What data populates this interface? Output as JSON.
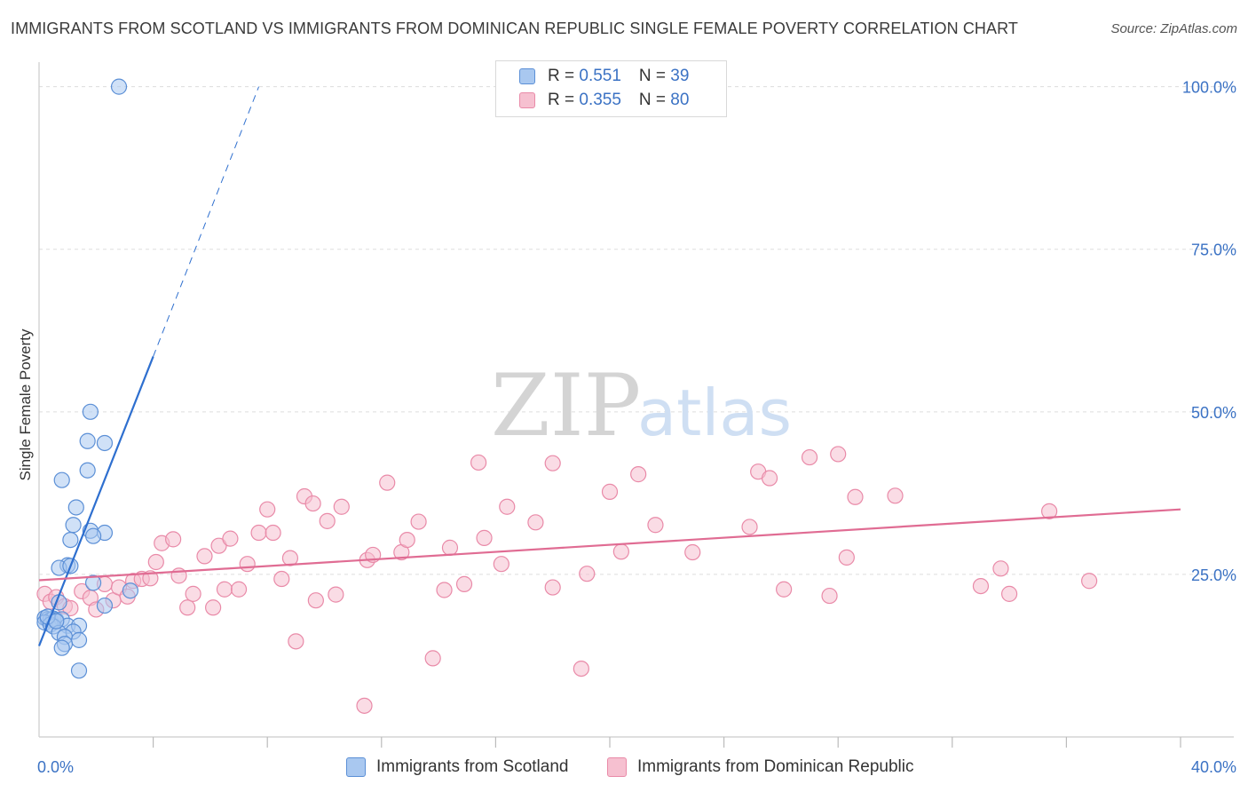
{
  "title": "IMMIGRANTS FROM SCOTLAND VS IMMIGRANTS FROM DOMINICAN REPUBLIC SINGLE FEMALE POVERTY CORRELATION CHART",
  "source": "Source: ZipAtlas.com",
  "watermark": {
    "zip": "ZIP",
    "atlas": "atlas"
  },
  "colors": {
    "scotland_fill": "#a9c8f0",
    "scotland_stroke": "#5b8fd6",
    "scotland_line": "#2e6fcf",
    "dominican_fill": "#f6c0d0",
    "dominican_stroke": "#e98aa8",
    "dominican_line": "#e06c93",
    "tick": "#3b72c4",
    "grid": "#dddddd"
  },
  "legend": {
    "scotland": {
      "r_label": "R = ",
      "r_value": "0.551",
      "n_label": "N = ",
      "n_value": "39"
    },
    "dominican": {
      "r_label": "R = ",
      "r_value": "0.355",
      "n_label": "N = ",
      "n_value": "80"
    }
  },
  "bottom_legend": {
    "scotland": "Immigrants from Scotland",
    "dominican": "Immigrants from Dominican Republic"
  },
  "chart_data": {
    "type": "scatter",
    "title": "IMMIGRANTS FROM SCOTLAND VS IMMIGRANTS FROM DOMINICAN REPUBLIC SINGLE FEMALE POVERTY CORRELATION CHART",
    "xlabel": "",
    "ylabel": "Single Female Poverty",
    "xlim": [
      0,
      40
    ],
    "ylim": [
      0,
      105
    ],
    "x_tick_labels": [
      {
        "value": 0,
        "label": "0.0%"
      },
      {
        "value": 40,
        "label": "40.0%"
      }
    ],
    "y_ticks": [
      {
        "value": 25,
        "label": "25.0%"
      },
      {
        "value": 50,
        "label": "50.0%"
      },
      {
        "value": 75,
        "label": "75.0%"
      },
      {
        "value": 100,
        "label": "100.0%"
      }
    ],
    "x_minor_ticks": [
      4,
      8,
      12,
      16,
      20,
      24,
      28,
      32,
      36,
      40
    ],
    "series": [
      {
        "name": "Immigrants from Scotland",
        "r": 0.551,
        "n": 39,
        "trend": {
          "x0": 0.0,
          "y0": 14.0,
          "x1": 4.0,
          "y1": 58.5,
          "dash_x1": 7.7,
          "dash_y1": 100.0
        },
        "points": [
          [
            2.8,
            100.0
          ],
          [
            1.8,
            50.0
          ],
          [
            1.7,
            45.5
          ],
          [
            2.3,
            45.2
          ],
          [
            1.7,
            41.0
          ],
          [
            0.8,
            39.5
          ],
          [
            1.3,
            35.3
          ],
          [
            1.2,
            32.6
          ],
          [
            1.8,
            31.7
          ],
          [
            2.3,
            31.4
          ],
          [
            1.9,
            30.9
          ],
          [
            1.1,
            30.3
          ],
          [
            1.0,
            26.4
          ],
          [
            0.7,
            26.0
          ],
          [
            1.1,
            26.3
          ],
          [
            1.9,
            23.7
          ],
          [
            3.2,
            22.5
          ],
          [
            0.7,
            20.7
          ],
          [
            2.3,
            20.2
          ],
          [
            0.2,
            18.3
          ],
          [
            0.3,
            18.1
          ],
          [
            0.4,
            18.0
          ],
          [
            0.5,
            18.2
          ],
          [
            0.6,
            18.0
          ],
          [
            0.8,
            18.1
          ],
          [
            0.2,
            17.6
          ],
          [
            0.4,
            17.3
          ],
          [
            0.5,
            17.0
          ],
          [
            1.0,
            17.1
          ],
          [
            1.4,
            17.1
          ],
          [
            0.7,
            16.0
          ],
          [
            1.2,
            16.2
          ],
          [
            0.9,
            15.4
          ],
          [
            1.4,
            14.9
          ],
          [
            0.9,
            14.3
          ],
          [
            0.8,
            13.7
          ],
          [
            1.4,
            10.2
          ],
          [
            0.3,
            18.5
          ],
          [
            0.6,
            17.8
          ]
        ]
      },
      {
        "name": "Immigrants from Dominican Republic",
        "r": 0.355,
        "n": 80,
        "trend": {
          "x0": 0.0,
          "y0": 24.1,
          "x1": 40.0,
          "y1": 35.0
        },
        "points": [
          [
            0.2,
            22.0
          ],
          [
            0.4,
            20.8
          ],
          [
            0.6,
            21.5
          ],
          [
            0.9,
            20.1
          ],
          [
            1.1,
            19.8
          ],
          [
            1.5,
            22.4
          ],
          [
            1.8,
            21.4
          ],
          [
            2.0,
            19.6
          ],
          [
            2.3,
            23.5
          ],
          [
            2.6,
            21.0
          ],
          [
            2.8,
            23.0
          ],
          [
            3.1,
            21.6
          ],
          [
            3.3,
            24.0
          ],
          [
            3.6,
            24.3
          ],
          [
            3.9,
            24.4
          ],
          [
            4.1,
            26.9
          ],
          [
            4.3,
            29.8
          ],
          [
            4.7,
            30.4
          ],
          [
            4.9,
            24.8
          ],
          [
            5.2,
            19.9
          ],
          [
            5.4,
            22.0
          ],
          [
            5.8,
            27.8
          ],
          [
            6.1,
            19.9
          ],
          [
            6.3,
            29.4
          ],
          [
            6.5,
            22.7
          ],
          [
            6.7,
            30.5
          ],
          [
            7.0,
            22.7
          ],
          [
            7.3,
            26.6
          ],
          [
            7.7,
            31.4
          ],
          [
            8.0,
            35.0
          ],
          [
            8.2,
            31.4
          ],
          [
            8.5,
            24.3
          ],
          [
            8.8,
            27.5
          ],
          [
            9.0,
            14.7
          ],
          [
            9.3,
            37.0
          ],
          [
            9.6,
            35.9
          ],
          [
            9.7,
            21.0
          ],
          [
            10.1,
            33.2
          ],
          [
            10.4,
            21.9
          ],
          [
            10.6,
            35.4
          ],
          [
            11.5,
            27.2
          ],
          [
            11.7,
            28.0
          ],
          [
            12.2,
            39.1
          ],
          [
            11.4,
            4.8
          ],
          [
            12.7,
            28.4
          ],
          [
            12.9,
            30.3
          ],
          [
            13.3,
            33.1
          ],
          [
            13.8,
            12.1
          ],
          [
            14.2,
            22.6
          ],
          [
            14.4,
            29.1
          ],
          [
            14.9,
            23.5
          ],
          [
            15.4,
            42.2
          ],
          [
            15.6,
            30.6
          ],
          [
            16.2,
            26.6
          ],
          [
            16.4,
            35.4
          ],
          [
            17.4,
            33.0
          ],
          [
            18.0,
            42.1
          ],
          [
            18.0,
            23.0
          ],
          [
            19.0,
            10.5
          ],
          [
            19.2,
            25.1
          ],
          [
            20.0,
            37.7
          ],
          [
            20.4,
            28.5
          ],
          [
            21.0,
            40.4
          ],
          [
            21.6,
            32.6
          ],
          [
            22.9,
            28.4
          ],
          [
            24.9,
            32.3
          ],
          [
            25.2,
            40.8
          ],
          [
            25.6,
            39.8
          ],
          [
            26.1,
            22.7
          ],
          [
            27.0,
            43.0
          ],
          [
            27.7,
            21.7
          ],
          [
            28.0,
            43.5
          ],
          [
            28.3,
            27.6
          ],
          [
            28.6,
            36.9
          ],
          [
            30.0,
            37.1
          ],
          [
            33.0,
            23.2
          ],
          [
            33.7,
            25.9
          ],
          [
            34.0,
            22.0
          ],
          [
            35.4,
            34.7
          ],
          [
            36.8,
            24.0
          ]
        ]
      }
    ]
  }
}
